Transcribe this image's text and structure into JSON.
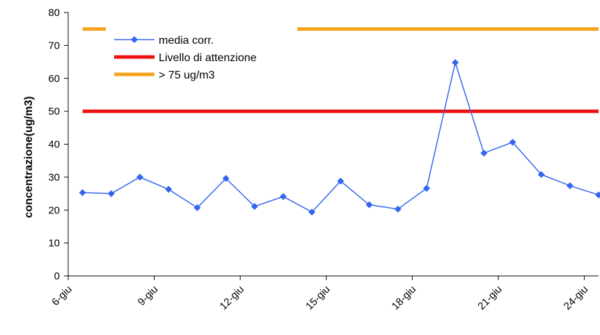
{
  "chart_data": {
    "type": "line",
    "ylabel": "concentrazione(ug/m3)",
    "xlabel": "",
    "ylim": [
      0,
      80
    ],
    "yticks": [
      0,
      10,
      20,
      30,
      40,
      50,
      60,
      70,
      80
    ],
    "x_dates": [
      "6-giu",
      "7-giu",
      "8-giu",
      "9-giu",
      "10-giu",
      "11-giu",
      "12-giu",
      "13-giu",
      "14-giu",
      "15-giu",
      "16-giu",
      "17-giu",
      "18-giu",
      "19-giu",
      "20-giu",
      "21-giu",
      "22-giu",
      "23-giu",
      "24-giu"
    ],
    "xtick_labels": [
      "6-giu",
      "9-giu",
      "12-giu",
      "15-giu",
      "18-giu",
      "21-giu",
      "24-giu"
    ],
    "series": [
      {
        "name": "media corr.",
        "kind": "line-marker",
        "color": "#3366ee",
        "values": [
          25.3,
          25.0,
          30.0,
          26.3,
          20.7,
          29.6,
          21.1,
          24.1,
          19.4,
          28.8,
          21.6,
          20.3,
          26.6,
          64.8,
          37.3,
          40.6,
          30.8,
          27.4,
          24.6
        ]
      },
      {
        "name": "Livello di attenzione",
        "kind": "threshold",
        "color": "#ee1111",
        "value": 50
      },
      {
        "name": "> 75 ug/m3",
        "kind": "threshold",
        "color": "#f5a21c",
        "value": 75
      }
    ],
    "legend_position": "top-left",
    "grid": false
  }
}
